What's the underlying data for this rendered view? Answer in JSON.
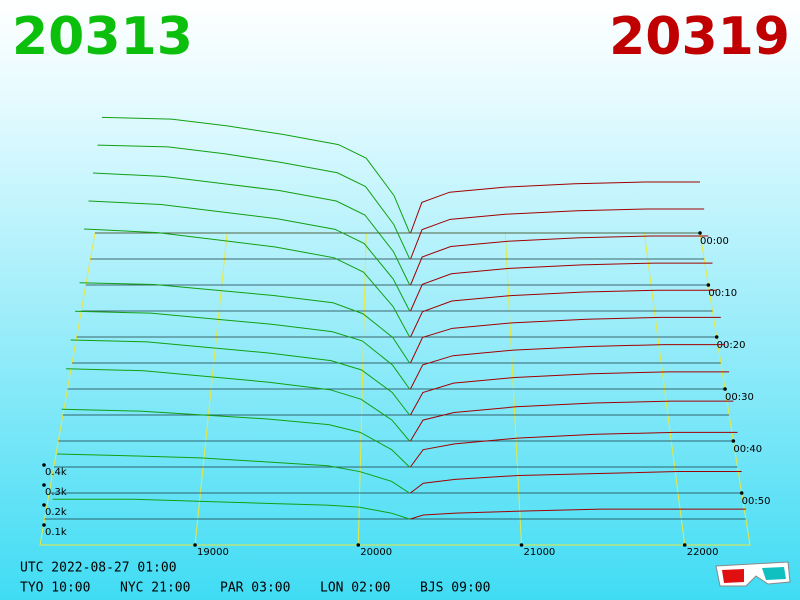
{
  "chart_data": {
    "type": "depth3d",
    "best_bid": 20313,
    "best_ask": 20319,
    "bid_color": "#12a012",
    "ask_color": "#a00000",
    "xlim": [
      18050,
      22400
    ],
    "xticks": [
      19000,
      20000,
      21000,
      22000
    ],
    "tlim": [
      0,
      60
    ],
    "time_ticks": [
      {
        "value": 0,
        "label": "00:00"
      },
      {
        "value": 10,
        "label": "00:10"
      },
      {
        "value": 20,
        "label": "00:20"
      },
      {
        "value": 30,
        "label": "00:30"
      },
      {
        "value": 40,
        "label": "00:40"
      },
      {
        "value": 50,
        "label": "00:50"
      }
    ],
    "depth_ticks": [
      {
        "value": 0.1,
        "label": "0.1k"
      },
      {
        "value": 0.2,
        "label": "0.2k"
      },
      {
        "value": 0.3,
        "label": "0.3k"
      },
      {
        "value": 0.4,
        "label": "0.4k"
      }
    ],
    "bid_prices": [
      18100,
      18600,
      19000,
      19400,
      19800,
      20000,
      20200,
      20313
    ],
    "ask_prices": [
      20319,
      20400,
      20600,
      21000,
      21500,
      22000,
      22400
    ],
    "slices": [
      {
        "minute": 0,
        "bids": [
          0.68,
          0.67,
          0.63,
          0.58,
          0.52,
          0.44,
          0.22,
          0
        ],
        "asks": [
          0,
          0.18,
          0.24,
          0.27,
          0.29,
          0.3,
          0.3
        ]
      },
      {
        "minute": 5,
        "bids": [
          0.66,
          0.65,
          0.61,
          0.56,
          0.5,
          0.42,
          0.2,
          0
        ],
        "asks": [
          0,
          0.17,
          0.23,
          0.26,
          0.28,
          0.29,
          0.29
        ]
      },
      {
        "minute": 10,
        "bids": [
          0.64,
          0.62,
          0.58,
          0.54,
          0.48,
          0.4,
          0.19,
          0
        ],
        "asks": [
          0,
          0.16,
          0.22,
          0.25,
          0.27,
          0.28,
          0.28
        ]
      },
      {
        "minute": 15,
        "bids": [
          0.62,
          0.6,
          0.56,
          0.52,
          0.46,
          0.38,
          0.18,
          0
        ],
        "asks": [
          0,
          0.15,
          0.21,
          0.24,
          0.26,
          0.27,
          0.27
        ]
      },
      {
        "minute": 20,
        "bids": [
          0.6,
          0.58,
          0.54,
          0.5,
          0.44,
          0.36,
          0.17,
          0
        ],
        "asks": [
          0,
          0.14,
          0.2,
          0.23,
          0.25,
          0.26,
          0.26
        ]
      },
      {
        "minute": 25,
        "bids": [
          0.44,
          0.43,
          0.4,
          0.37,
          0.33,
          0.27,
          0.14,
          0
        ],
        "asks": [
          0,
          0.14,
          0.19,
          0.22,
          0.24,
          0.25,
          0.25
        ]
      },
      {
        "minute": 30,
        "bids": [
          0.42,
          0.41,
          0.38,
          0.35,
          0.31,
          0.26,
          0.13,
          0
        ],
        "asks": [
          0,
          0.13,
          0.18,
          0.21,
          0.23,
          0.24,
          0.24
        ]
      },
      {
        "minute": 35,
        "bids": [
          0.4,
          0.39,
          0.36,
          0.33,
          0.29,
          0.24,
          0.12,
          0
        ],
        "asks": [
          0,
          0.12,
          0.17,
          0.2,
          0.22,
          0.23,
          0.23
        ]
      },
      {
        "minute": 40,
        "bids": [
          0.38,
          0.37,
          0.34,
          0.31,
          0.27,
          0.22,
          0.11,
          0
        ],
        "asks": [
          0,
          0.11,
          0.15,
          0.18,
          0.2,
          0.21,
          0.21
        ]
      },
      {
        "minute": 45,
        "bids": [
          0.3,
          0.29,
          0.27,
          0.25,
          0.22,
          0.18,
          0.09,
          0
        ],
        "asks": [
          0,
          0.09,
          0.12,
          0.15,
          0.17,
          0.18,
          0.18
        ]
      },
      {
        "minute": 50,
        "bids": [
          0.2,
          0.19,
          0.18,
          0.16,
          0.14,
          0.11,
          0.06,
          0
        ],
        "asks": [
          0,
          0.05,
          0.07,
          0.09,
          0.1,
          0.11,
          0.11
        ]
      },
      {
        "minute": 55,
        "bids": [
          0.1,
          0.1,
          0.09,
          0.08,
          0.07,
          0.06,
          0.03,
          0
        ],
        "asks": [
          0,
          0.02,
          0.03,
          0.04,
          0.05,
          0.05,
          0.05
        ]
      }
    ],
    "utc": "UTC 2022-08-27 01:00",
    "clocks": [
      "TYO 10:00",
      "NYC 21:00",
      "PAR 03:00",
      "LON 02:00",
      "BJS 09:00"
    ]
  }
}
